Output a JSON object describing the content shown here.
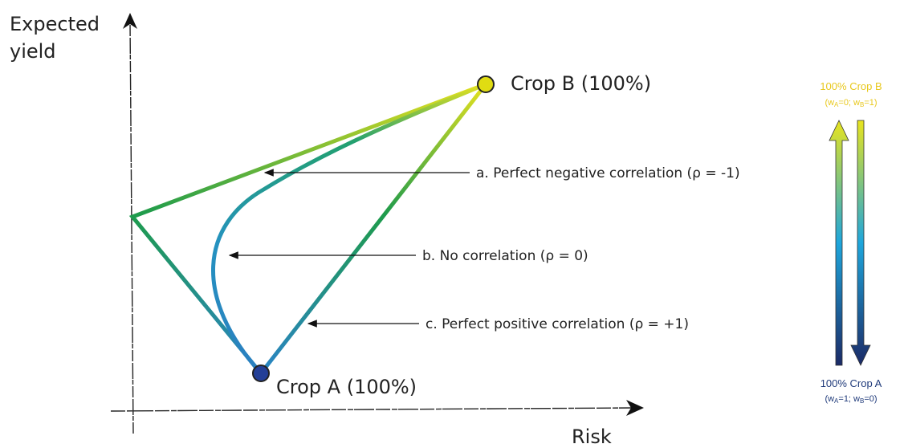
{
  "axes": {
    "y_label": [
      "Expected",
      "yield"
    ],
    "x_label": "Risk"
  },
  "points": {
    "crop_b": "Crop B (100%)",
    "crop_a": "Crop A (100%)"
  },
  "annotations": [
    "a. Perfect negative correlation (ρ = -1)",
    "b. No correlation (ρ = 0)",
    "c. Perfect positive correlation (ρ = +1)"
  ],
  "legend": {
    "top": {
      "title": "100% Crop B",
      "note": [
        "(w",
        "A",
        "=0; w",
        "B",
        "=1)"
      ]
    },
    "bottom": {
      "title": "100% Crop A",
      "note": [
        "(w",
        "A",
        "=1; w",
        "B",
        "=0)"
      ]
    }
  }
}
